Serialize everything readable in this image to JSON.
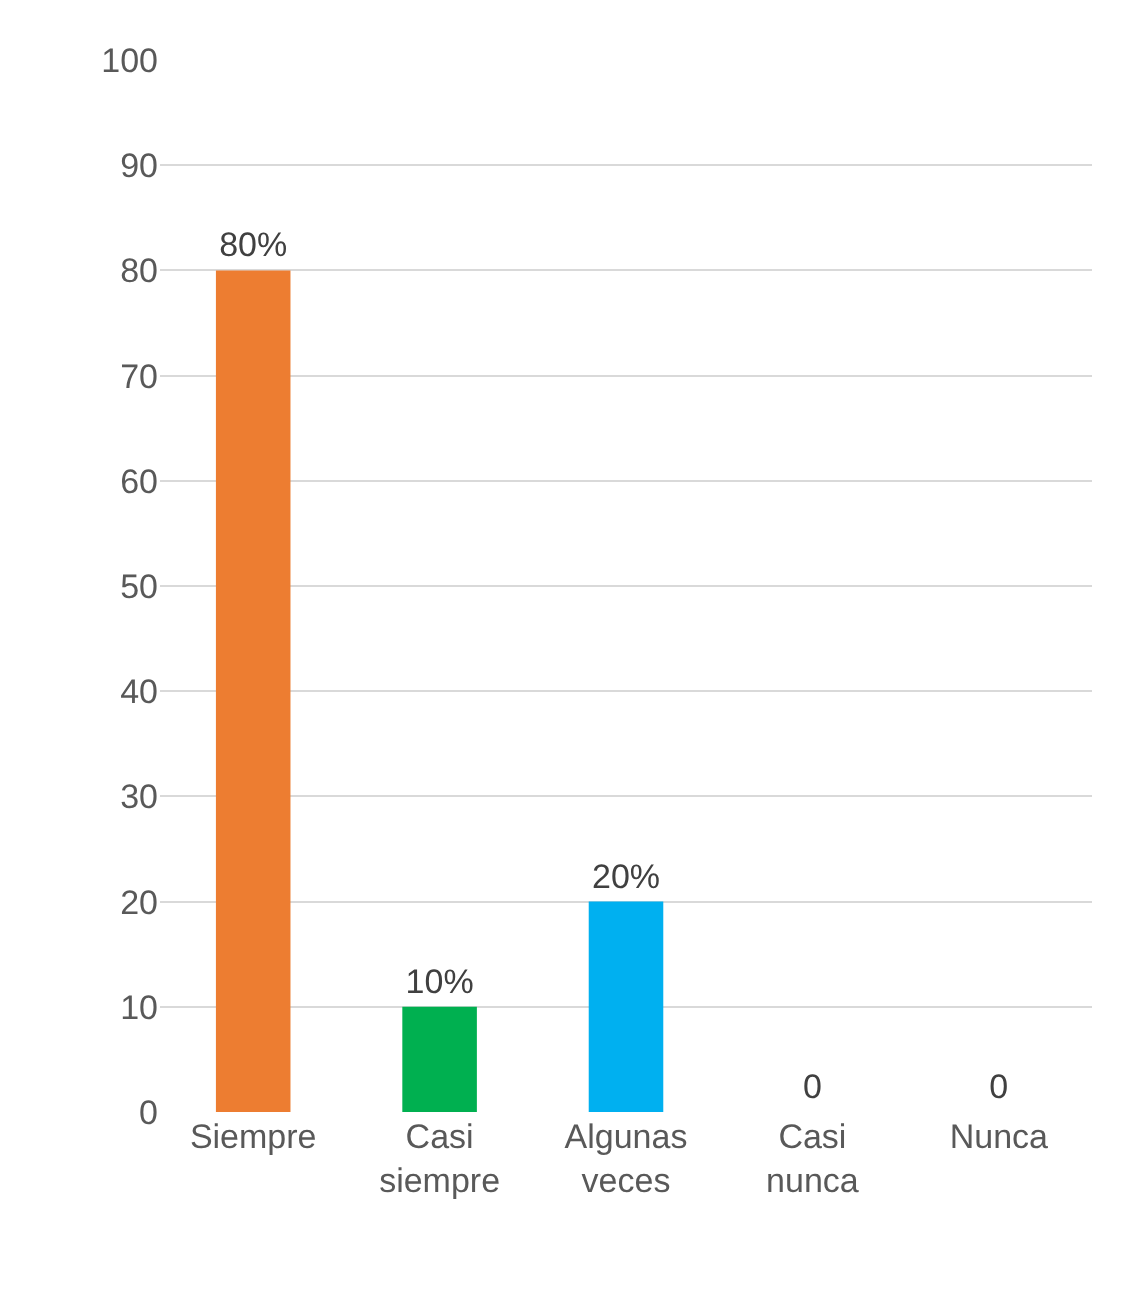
{
  "chart_data": {
    "type": "bar",
    "categories": [
      "Siempre",
      "Casi siempre",
      "Algunas veces",
      "Casi nunca",
      "Nunca"
    ],
    "values": [
      80,
      10,
      20,
      0,
      0
    ],
    "colors": [
      "#ed7d31",
      "#00b050",
      "#00b0f0",
      "#5b9bd5",
      "#5b9bd5"
    ],
    "value_labels": [
      "80%",
      "10%",
      "20%",
      "0",
      "0"
    ],
    "ylim": [
      0,
      100
    ],
    "yticks": [
      0,
      10,
      20,
      30,
      40,
      50,
      60,
      70,
      80,
      90,
      100
    ],
    "grid": "y",
    "legend": false
  }
}
